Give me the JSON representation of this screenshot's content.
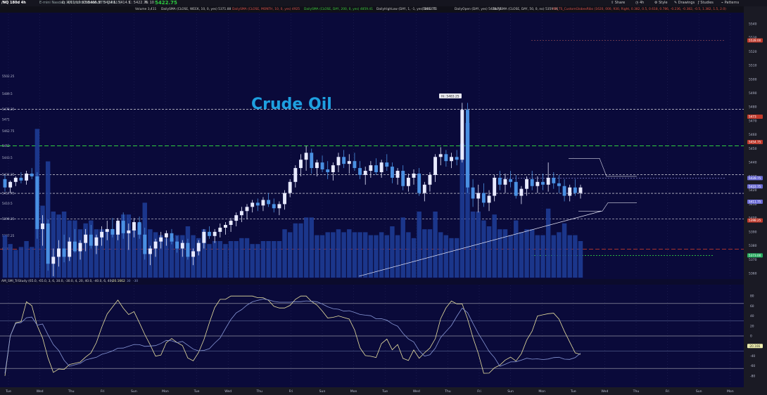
{
  "symbol": "/NQ 180d 4h",
  "description": "E-mini Nasdaq 100 Index Futures,ETH (JUN 17)",
  "quote": {
    "date_time": "D: 4/11/17 5:30 AM",
    "open": "O: 5415.5",
    "high": "H: 5424.5",
    "low": "L: 5414.5",
    "close": "C: 5422.75",
    "change": "R: 10",
    "last": "5422.75"
  },
  "toolbar": {
    "share": "Share",
    "period": "4h",
    "style": "Style",
    "drawings": "Drawings",
    "studies": "Studies",
    "patterns": "Patterns"
  },
  "studies": [
    {
      "label": "Volume",
      "value": "3,411",
      "color": "#d0d0d0"
    },
    {
      "label": "DailySMA (CLOSE, WEEK, 10, 0, yes)",
      "value": "5371.88",
      "color": "#d0d0d0"
    },
    {
      "label": "DailySMA (CLOSE, MONTH, 10, 0, yes)",
      "value": "4925",
      "color": "#e0544a"
    },
    {
      "label": "DailySMA (CLOSE, DAY, 200, 0, yes)",
      "value": "4859.41",
      "color": "#3fcf3f"
    },
    {
      "label": "DailyHighLow (DAY, 1, -1, yes)",
      "value": "5443.75",
      "color": "#d0d0d0"
    },
    {
      "label": "5405.75",
      "value": "",
      "color": "#d0d0d0"
    },
    {
      "label": "DailyOpen (DAY, yes)",
      "value": "5428.75",
      "color": "#d0d0d0"
    },
    {
      "label": "DailySMA (CLOSE, DAY, 50, 0, no)",
      "value": "5359.56",
      "color": "#d0d0d0"
    },
    {
      "label": "AM_TS_CustomGlobexRibs (1620, 000, 930, Right, 0.382, 0.5, 0.618, 0.786, -0.236, -0.382, -0.5, 1.382, 1.5, 2.0)",
      "value": "",
      "color": "#e0544a"
    }
  ],
  "copyright": "2017 © TD Ameritrade IP Company, Inc.",
  "annotation": "Crude Oil",
  "high_callout": "Hi: 5483.25",
  "oscillator": {
    "label": "AM_SMI_TriStudy (65.0, -65.0, 3, 6, 30.0, -30.0, 4, 20, 40.0, -40.0, 6, 40)",
    "value": "-20.1662",
    "extra1": "30",
    "extra2": "-30",
    "axis_labels": [
      "80",
      "60",
      "40",
      "20",
      "0",
      "-20",
      "-40",
      "-60",
      "-80"
    ],
    "current_label": "-20.166"
  },
  "chart_data": {
    "type": "candlestick",
    "price_axis": {
      "range": [
        5357,
        5547
      ],
      "tick_labels": [
        "5540",
        "5530",
        "5520",
        "5510",
        "5500",
        "5490",
        "5480",
        "5470",
        "5460",
        "5450",
        "5440",
        "5430",
        "5420",
        "5410",
        "5400",
        "5390",
        "5380",
        "5370",
        "5360"
      ]
    },
    "left_price_labels": [
      "5502.25",
      "5489.5",
      "5478.25",
      "5471",
      "5462.75",
      "5452",
      "5443.5",
      "5431.25",
      "5417.75",
      "5410.5",
      "5399.25",
      "5387.25",
      "5377.5"
    ],
    "right_tags": [
      {
        "value": "5528.00",
        "color": "#c0392b"
      },
      {
        "value": "5473",
        "color": "#c0392b"
      },
      {
        "value": "5454.75",
        "color": "#c0392b"
      },
      {
        "value": "5428.75",
        "color": "#6b6bd6"
      },
      {
        "value": "5422.75",
        "color": "#6b6bd6"
      },
      {
        "value": "5411.75",
        "color": "#6b6bd6"
      },
      {
        "value": "5398.25",
        "color": "#c0392b"
      },
      {
        "value": "5373.00",
        "color": "#27ae60"
      }
    ],
    "x_labels": [
      "Tue",
      "Wed",
      "Thu",
      "Fri",
      "Sun",
      "Mon",
      "Tue",
      "Wed",
      "Thu",
      "Fri",
      "Sun",
      "Mon",
      "Tue",
      "Wed",
      "Thu",
      "Fri",
      "Sun",
      "Mon",
      "Tue",
      "Wed",
      "Thu",
      "Fri",
      "Sun",
      "Mon"
    ],
    "candles": [
      [
        5428,
        5431,
        5419,
        5422
      ],
      [
        5422,
        5427,
        5418,
        5426
      ],
      [
        5426,
        5430,
        5423,
        5429
      ],
      [
        5429,
        5433,
        5425,
        5427
      ],
      [
        5427,
        5434,
        5424,
        5432
      ],
      [
        5432,
        5436,
        5428,
        5430
      ],
      [
        5430,
        5433,
        5385,
        5392
      ],
      [
        5392,
        5402,
        5380,
        5396
      ],
      [
        5396,
        5399,
        5362,
        5367
      ],
      [
        5367,
        5378,
        5358,
        5372
      ],
      [
        5372,
        5384,
        5365,
        5378
      ],
      [
        5378,
        5388,
        5368,
        5372
      ],
      [
        5372,
        5386,
        5369,
        5383
      ],
      [
        5383,
        5392,
        5375,
        5376
      ],
      [
        5376,
        5384,
        5370,
        5382
      ],
      [
        5382,
        5392,
        5376,
        5388
      ],
      [
        5388,
        5395,
        5378,
        5380
      ],
      [
        5380,
        5388,
        5374,
        5386
      ],
      [
        5386,
        5394,
        5380,
        5390
      ],
      [
        5390,
        5398,
        5384,
        5392
      ],
      [
        5392,
        5400,
        5386,
        5388
      ],
      [
        5388,
        5400,
        5384,
        5398
      ],
      [
        5398,
        5404,
        5385,
        5389
      ],
      [
        5389,
        5396,
        5377,
        5391
      ],
      [
        5391,
        5400,
        5386,
        5397
      ],
      [
        5397,
        5401,
        5385,
        5388
      ],
      [
        5388,
        5393,
        5370,
        5374
      ],
      [
        5374,
        5380,
        5366,
        5378
      ],
      [
        5378,
        5385,
        5372,
        5383
      ],
      [
        5383,
        5390,
        5378,
        5386
      ],
      [
        5386,
        5391,
        5380,
        5389
      ],
      [
        5389,
        5392,
        5381,
        5383
      ],
      [
        5383,
        5387,
        5375,
        5378
      ],
      [
        5378,
        5384,
        5372,
        5382
      ],
      [
        5382,
        5385,
        5370,
        5372
      ],
      [
        5372,
        5378,
        5366,
        5376
      ],
      [
        5376,
        5384,
        5373,
        5382
      ],
      [
        5382,
        5392,
        5378,
        5390
      ],
      [
        5390,
        5394,
        5385,
        5387
      ],
      [
        5387,
        5392,
        5382,
        5390
      ],
      [
        5390,
        5396,
        5386,
        5393
      ],
      [
        5393,
        5397,
        5388,
        5395
      ],
      [
        5395,
        5400,
        5390,
        5398
      ],
      [
        5398,
        5404,
        5394,
        5402
      ],
      [
        5402,
        5408,
        5397,
        5405
      ],
      [
        5405,
        5410,
        5399,
        5408
      ],
      [
        5408,
        5413,
        5404,
        5411
      ],
      [
        5411,
        5414,
        5405,
        5409
      ],
      [
        5409,
        5415,
        5405,
        5413
      ],
      [
        5413,
        5418,
        5408,
        5410
      ],
      [
        5410,
        5414,
        5404,
        5407
      ],
      [
        5407,
        5412,
        5402,
        5410
      ],
      [
        5410,
        5420,
        5406,
        5418
      ],
      [
        5418,
        5428,
        5415,
        5426
      ],
      [
        5426,
        5438,
        5422,
        5436
      ],
      [
        5436,
        5446,
        5430,
        5442
      ],
      [
        5442,
        5452,
        5434,
        5447
      ],
      [
        5447,
        5450,
        5432,
        5436
      ],
      [
        5436,
        5442,
        5430,
        5440
      ],
      [
        5440,
        5445,
        5433,
        5435
      ],
      [
        5435,
        5441,
        5428,
        5433
      ],
      [
        5433,
        5440,
        5427,
        5438
      ],
      [
        5438,
        5447,
        5433,
        5444
      ],
      [
        5444,
        5449,
        5436,
        5439
      ],
      [
        5439,
        5446,
        5432,
        5441
      ],
      [
        5441,
        5447,
        5434,
        5436
      ],
      [
        5436,
        5441,
        5428,
        5431
      ],
      [
        5431,
        5437,
        5424,
        5434
      ],
      [
        5434,
        5441,
        5429,
        5438
      ],
      [
        5438,
        5443,
        5431,
        5433
      ],
      [
        5433,
        5442,
        5429,
        5440
      ],
      [
        5440,
        5446,
        5434,
        5437
      ],
      [
        5437,
        5440,
        5425,
        5429
      ],
      [
        5429,
        5436,
        5424,
        5434
      ],
      [
        5434,
        5438,
        5420,
        5423
      ],
      [
        5423,
        5432,
        5419,
        5429
      ],
      [
        5429,
        5435,
        5424,
        5432
      ],
      [
        5432,
        5436,
        5416,
        5418
      ],
      [
        5418,
        5426,
        5412,
        5424
      ],
      [
        5424,
        5433,
        5419,
        5431
      ],
      [
        5431,
        5446,
        5426,
        5444
      ],
      [
        5444,
        5451,
        5438,
        5446
      ],
      [
        5446,
        5449,
        5437,
        5441
      ],
      [
        5441,
        5447,
        5436,
        5444
      ],
      [
        5444,
        5449,
        5438,
        5442
      ],
      [
        5442,
        5483,
        5440,
        5478
      ],
      [
        5478,
        5483,
        5418,
        5422
      ],
      [
        5422,
        5428,
        5408,
        5414
      ],
      [
        5414,
        5424,
        5404,
        5418
      ],
      [
        5418,
        5425,
        5408,
        5411
      ],
      [
        5411,
        5420,
        5405,
        5416
      ],
      [
        5416,
        5431,
        5412,
        5429
      ],
      [
        5429,
        5434,
        5420,
        5424
      ],
      [
        5424,
        5432,
        5418,
        5428
      ],
      [
        5428,
        5434,
        5422,
        5426
      ],
      [
        5426,
        5431,
        5414,
        5416
      ],
      [
        5416,
        5423,
        5410,
        5421
      ],
      [
        5421,
        5430,
        5416,
        5428
      ],
      [
        5428,
        5434,
        5420,
        5423
      ],
      [
        5423,
        5430,
        5418,
        5426
      ],
      [
        5426,
        5432,
        5420,
        5424
      ],
      [
        5424,
        5440,
        5419,
        5429
      ],
      [
        5429,
        5433,
        5421,
        5425
      ],
      [
        5425,
        5431,
        5418,
        5423
      ],
      [
        5423,
        5428,
        5412,
        5416
      ],
      [
        5416,
        5424,
        5412,
        5422
      ],
      [
        5422,
        5428,
        5416,
        5418
      ],
      [
        5418,
        5424,
        5414,
        5422
      ]
    ],
    "volume_note": "relative volume bars per candle",
    "series": [
      {
        "name": "DailySMA (CLOSE, WEEK, 10, 0, yes)",
        "color": "#d8d8e8"
      },
      {
        "name": "DailySMA (CLOSE, MONTH, 10, 0, yes)",
        "color": "#c0392b"
      },
      {
        "name": "DailySMA (CLOSE, DAY, 200, 0, yes)",
        "color": "#2ecc40"
      }
    ]
  },
  "colors": {
    "background": "#0a0a3a",
    "candle": "#e8eaff",
    "candle_down": "#4a90e2",
    "volume": "#1f3e9a",
    "annotation": "#1ea0e0"
  }
}
